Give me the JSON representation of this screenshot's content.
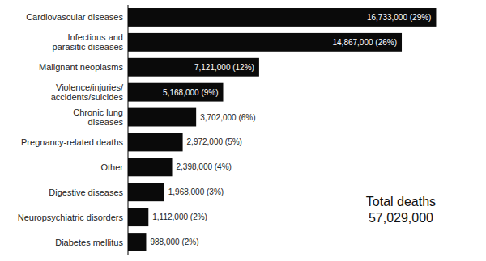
{
  "chart_data": {
    "type": "bar",
    "orientation": "horizontal",
    "categories": [
      "Cardiovascular diseases",
      "Infectious and\nparasitic diseases",
      "Malignant neoplasms",
      "Violence/injuries/\naccidents/suicides",
      "Chronic lung\ndiseases",
      "Pregnancy-related deaths",
      "Other",
      "Digestive diseases",
      "Neuropsychiatric disorders",
      "Diabetes mellitus"
    ],
    "values": [
      16733000,
      14867000,
      7121000,
      5168000,
      3702000,
      2972000,
      2398000,
      1968000,
      1112000,
      988000
    ],
    "value_labels": [
      "16,733,000 (29%)",
      "14,867,000 (26%)",
      "7,121,000 (12%)",
      "5,168,000 (9%)",
      "3,702,000 (6%)",
      "2,972,000 (5%)",
      "2,398,000 (4%)",
      "1,968,000 (3%)",
      "1,112,000 (2%)",
      "988,000 (2%)"
    ],
    "data_labels": true,
    "color": "#0a0a0a",
    "xlim": [
      0,
      19000000
    ],
    "tick_labels": "y",
    "grid": false,
    "annotations": [
      "Total deaths",
      "57,029,000"
    ]
  }
}
